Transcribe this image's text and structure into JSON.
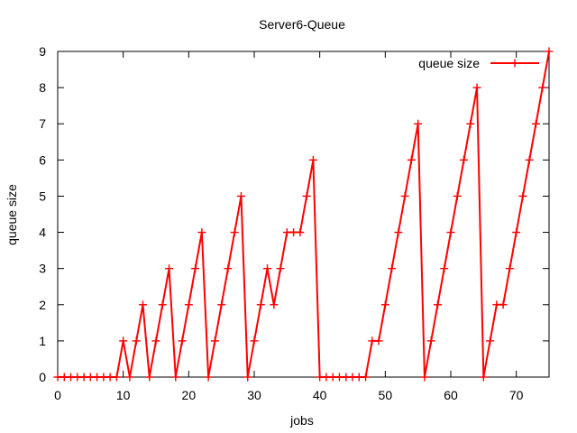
{
  "chart_data": {
    "type": "line",
    "title": "Server6-Queue",
    "xlabel": "jobs",
    "ylabel": "queue size",
    "xlim": [
      0,
      75
    ],
    "ylim": [
      0,
      9
    ],
    "xticks": [
      0,
      10,
      20,
      30,
      40,
      50,
      60,
      70
    ],
    "yticks": [
      0,
      1,
      2,
      3,
      4,
      5,
      6,
      7,
      8,
      9
    ],
    "grid": false,
    "legend": "top-right",
    "series": [
      {
        "name": "queue size",
        "color": "#ff0000",
        "marker": "plus",
        "x": [
          0,
          1,
          2,
          3,
          4,
          5,
          6,
          7,
          8,
          9,
          10,
          11,
          12,
          13,
          14,
          15,
          16,
          17,
          18,
          19,
          20,
          21,
          22,
          23,
          24,
          25,
          26,
          27,
          28,
          29,
          30,
          31,
          32,
          33,
          34,
          35,
          36,
          37,
          38,
          39,
          40,
          41,
          42,
          43,
          44,
          45,
          46,
          47,
          48,
          49,
          50,
          51,
          52,
          53,
          54,
          55,
          56,
          57,
          58,
          59,
          60,
          61,
          62,
          63,
          64,
          65,
          66,
          67,
          68,
          69,
          70,
          71,
          72,
          73,
          74,
          75
        ],
        "y": [
          0,
          0,
          0,
          0,
          0,
          0,
          0,
          0,
          0,
          0,
          1,
          0,
          1,
          2,
          0,
          1,
          2,
          3,
          0,
          1,
          2,
          3,
          4,
          0,
          1,
          2,
          3,
          4,
          5,
          0,
          1,
          2,
          3,
          2,
          3,
          4,
          4,
          4,
          5,
          6,
          0,
          0,
          0,
          0,
          0,
          0,
          0,
          0,
          1,
          1,
          2,
          3,
          4,
          5,
          6,
          7,
          0,
          1,
          2,
          3,
          4,
          5,
          6,
          7,
          8,
          0,
          1,
          2,
          2,
          3,
          4,
          5,
          6,
          7,
          8,
          9
        ]
      }
    ]
  }
}
